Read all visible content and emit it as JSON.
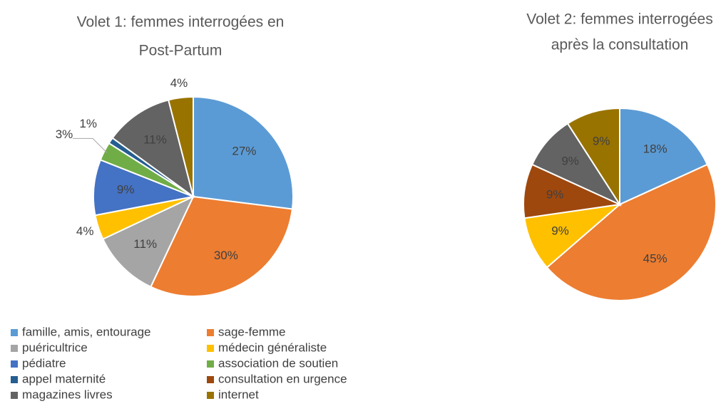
{
  "chart_data": [
    {
      "type": "pie",
      "title": [
        "Volet 1: femmes interrogées en",
        "Post-Partum"
      ],
      "categories": [
        "famille, amis, entourage",
        "sage-femme",
        "puéricultrice",
        "médecin généraliste",
        "pédiatre",
        "association de soutien",
        "appel maternité",
        "consultation en urgence",
        "magazines livres",
        "internet"
      ],
      "values": [
        27,
        30,
        11,
        4,
        9,
        3,
        1,
        0,
        11,
        4
      ],
      "value_labels": [
        "27%",
        "30%",
        "11%",
        "4%",
        "9%",
        "3%",
        "1%",
        null,
        "11%",
        "4%"
      ],
      "colors": [
        "#5b9bd5",
        "#ed7d31",
        "#a5a5a5",
        "#ffc000",
        "#4472c4",
        "#70ad47",
        "#255e91",
        "#9e480e",
        "#636363",
        "#997300"
      ],
      "legend": "bottom"
    },
    {
      "type": "pie",
      "title": [
        "Volet 2: femmes interrogées",
        "après la consultation"
      ],
      "values": [
        18,
        45,
        9,
        9,
        9,
        9
      ],
      "value_labels": [
        "18%",
        "45%",
        "9%",
        "9%",
        "9%",
        "9%"
      ],
      "colors": [
        "#5b9bd5",
        "#ed7d31",
        "#ffc000",
        "#9e480e",
        "#636363",
        "#997300"
      ]
    }
  ]
}
